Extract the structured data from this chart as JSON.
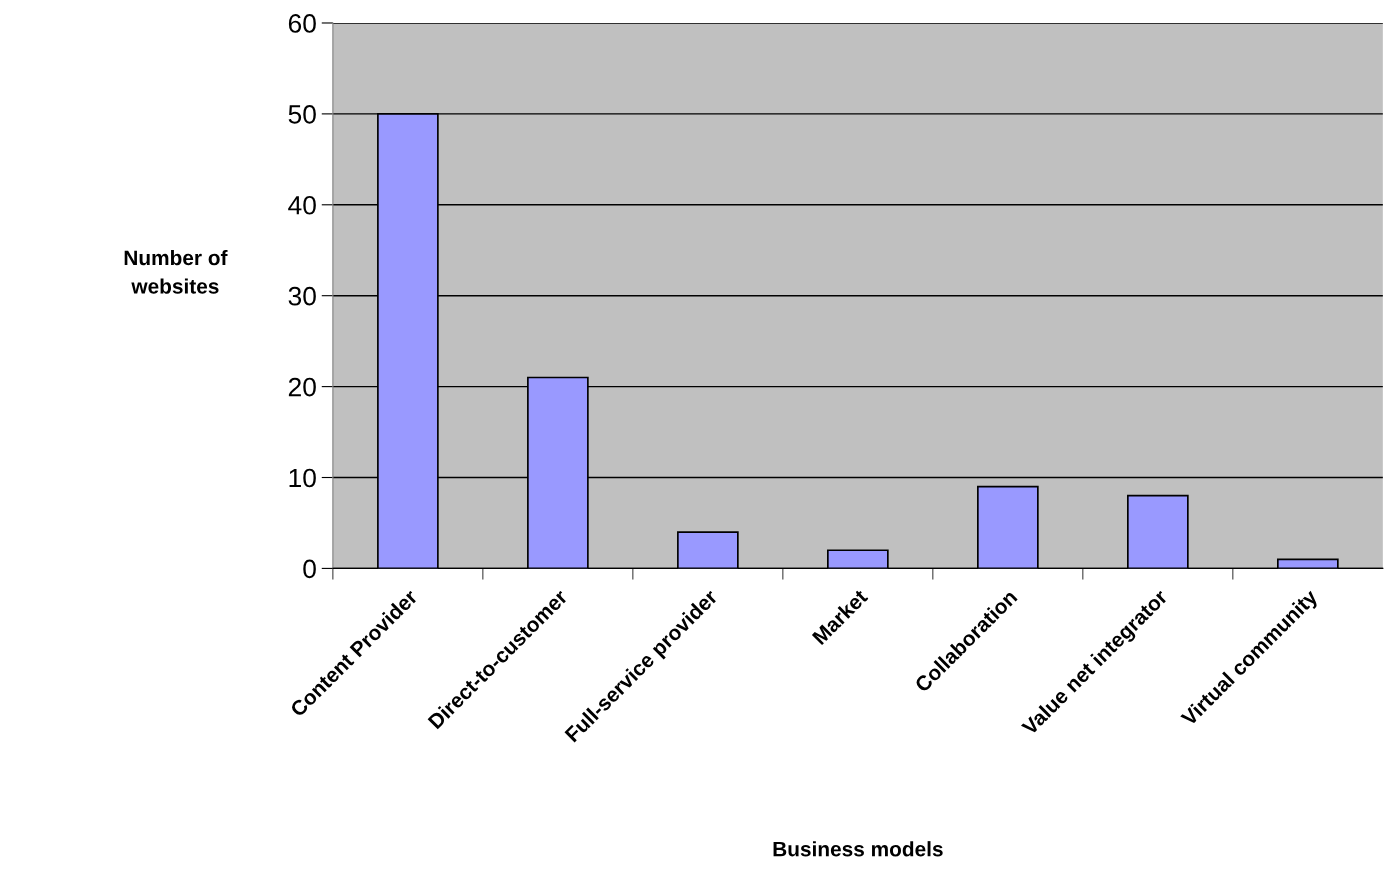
{
  "chart_data": {
    "type": "bar",
    "xlabel": "Business models",
    "ylabel": "Number of\nwebsites",
    "categories": [
      "Content Provider",
      "Direct-to-customer",
      "Full-service provider",
      "Market",
      "Collaboration",
      "Value net integrator",
      "Virtual community"
    ],
    "values": [
      50,
      21,
      4,
      2,
      9,
      8,
      1
    ],
    "color": "#9999ff",
    "ylim": [
      0,
      60
    ],
    "yticks": [
      0,
      10,
      20,
      30,
      40,
      50,
      60
    ],
    "grid": "y",
    "legend": false
  }
}
